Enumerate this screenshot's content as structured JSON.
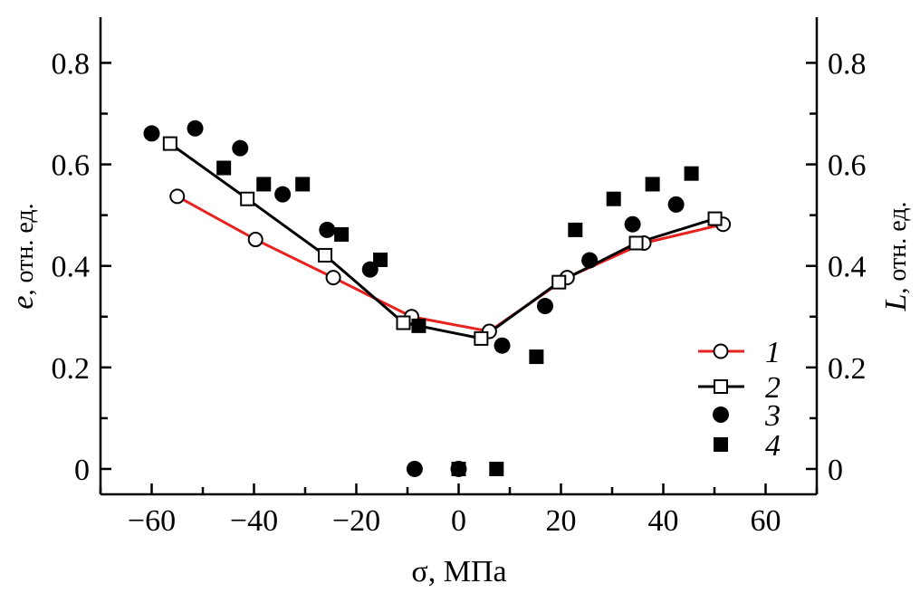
{
  "chart_data": {
    "type": "scatter",
    "xlabel": "σ, МПа",
    "ylabel_left_var": "e",
    "ylabel_left_unit": ", отн. ед.",
    "ylabel_right_var": "L",
    "ylabel_right_unit": ", отн. ед.",
    "xlim": [
      -70,
      70
    ],
    "ylim": [
      -0.05,
      0.89
    ],
    "xticks": [
      -60,
      -40,
      -20,
      0,
      20,
      40,
      60
    ],
    "xtick_labels": [
      "−60",
      "−40",
      "−20",
      "0",
      "20",
      "40",
      "60"
    ],
    "yticks": [
      0,
      0.2,
      0.4,
      0.6,
      0.8
    ],
    "ytick_labels": [
      "0",
      "0.2",
      "0.4",
      "0.6",
      "0.8"
    ],
    "grid": false,
    "legend_position": "bottom-right",
    "series": [
      {
        "name": "1",
        "marker": "open-circle",
        "line": true,
        "color": "#e8231f",
        "x": [
          -55,
          -39.7,
          -24.5,
          -9.2,
          6,
          21.2,
          36.2,
          51.7
        ],
        "y": [
          0.537,
          0.452,
          0.377,
          0.3,
          0.271,
          0.377,
          0.445,
          0.482
        ]
      },
      {
        "name": "2",
        "marker": "open-square",
        "line": true,
        "color": "#000000",
        "x": [
          -56.4,
          -41.3,
          -26.1,
          -10.8,
          4.4,
          19.6,
          34.7,
          50.1
        ],
        "y": [
          0.641,
          0.532,
          0.421,
          0.288,
          0.257,
          0.368,
          0.445,
          0.493
        ]
      },
      {
        "name": "3",
        "marker": "filled-circle",
        "line": false,
        "color": "#000000",
        "x": [
          -60,
          -51.5,
          -42.7,
          -34.4,
          -25.7,
          -17.3,
          -8.6,
          0,
          8.5,
          16.9,
          25.6,
          34,
          42.5
        ],
        "y": [
          0.661,
          0.671,
          0.632,
          0.541,
          0.471,
          0.393,
          0,
          0,
          0.243,
          0.321,
          0.411,
          0.482,
          0.521
        ]
      },
      {
        "name": "4",
        "marker": "filled-square",
        "line": false,
        "color": "#000000",
        "x": [
          -45.9,
          -38.1,
          -30.5,
          -22.9,
          -15.3,
          -7.8,
          0,
          7.4,
          15.2,
          22.8,
          30.3,
          37.9,
          45.5
        ],
        "y": [
          0.593,
          0.561,
          0.561,
          0.462,
          0.412,
          0.282,
          0,
          0,
          0.221,
          0.471,
          0.532,
          0.561,
          0.582
        ]
      }
    ]
  }
}
